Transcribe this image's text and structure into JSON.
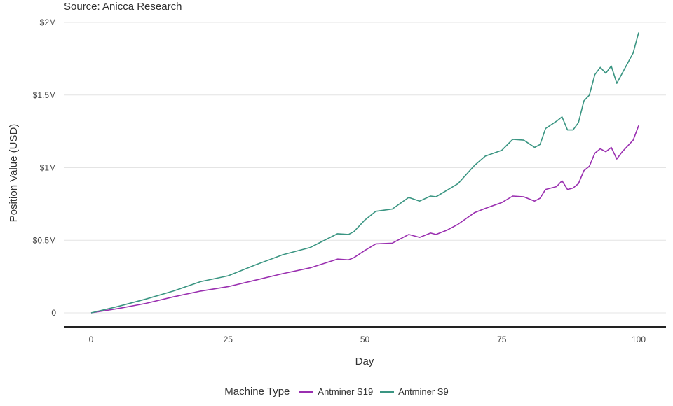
{
  "subtitle": "Source: Anicca Research",
  "colors": {
    "s19": "#9a2fb0",
    "s9": "#3a9582",
    "grid": "#e4e4e4",
    "axis": "#222222"
  },
  "chart_data": {
    "type": "line",
    "subtitle": "Source: Anicca Research",
    "xlabel": "Day",
    "ylabel": "Position Value (USD)",
    "xlim": [
      0,
      100
    ],
    "ylim": [
      0,
      2000000
    ],
    "x_ticks": [
      0,
      25,
      50,
      75,
      100
    ],
    "y_ticks": [
      0,
      500000,
      1000000,
      1500000,
      2000000
    ],
    "y_tick_labels": [
      "0",
      "$0.5M",
      "$1M",
      "$1.5M",
      "$2M"
    ],
    "x_tick_labels": [
      "0",
      "25",
      "50",
      "75",
      "100"
    ],
    "grid": "horizontal",
    "legend": {
      "title": "Machine Type",
      "position": "bottom",
      "entries": [
        "Antminer S19",
        "Antminer S9"
      ]
    },
    "series": [
      {
        "name": "Antminer S19",
        "color": "#9a2fb0",
        "x": [
          0,
          5,
          10,
          15,
          20,
          25,
          30,
          35,
          40,
          45,
          47,
          48,
          50,
          52,
          55,
          58,
          60,
          62,
          63,
          65,
          67,
          70,
          72,
          75,
          77,
          79,
          81,
          82,
          83,
          85,
          86,
          87,
          88,
          89,
          90,
          91,
          92,
          93,
          94,
          95,
          96,
          97,
          98,
          99,
          100
        ],
        "values": [
          0,
          30000,
          65000,
          110000,
          150000,
          180000,
          225000,
          270000,
          310000,
          370000,
          365000,
          380000,
          430000,
          475000,
          480000,
          540000,
          520000,
          550000,
          540000,
          570000,
          610000,
          690000,
          720000,
          760000,
          805000,
          800000,
          770000,
          790000,
          850000,
          870000,
          910000,
          850000,
          860000,
          890000,
          980000,
          1010000,
          1100000,
          1130000,
          1110000,
          1140000,
          1060000,
          1110000,
          1150000,
          1190000,
          1290000
        ]
      },
      {
        "name": "Antminer S9",
        "color": "#3a9582",
        "x": [
          0,
          5,
          10,
          15,
          20,
          25,
          30,
          35,
          40,
          45,
          47,
          48,
          50,
          52,
          55,
          58,
          60,
          62,
          63,
          65,
          67,
          70,
          72,
          75,
          77,
          79,
          81,
          82,
          83,
          85,
          86,
          87,
          88,
          89,
          90,
          91,
          92,
          93,
          94,
          95,
          96,
          97,
          98,
          99,
          100
        ],
        "values": [
          0,
          45000,
          95000,
          150000,
          215000,
          255000,
          330000,
          400000,
          450000,
          545000,
          540000,
          560000,
          640000,
          700000,
          715000,
          795000,
          770000,
          805000,
          800000,
          845000,
          890000,
          1015000,
          1080000,
          1120000,
          1195000,
          1190000,
          1140000,
          1160000,
          1270000,
          1320000,
          1350000,
          1260000,
          1260000,
          1310000,
          1460000,
          1500000,
          1640000,
          1690000,
          1650000,
          1700000,
          1580000,
          1650000,
          1720000,
          1790000,
          1930000
        ]
      }
    ]
  }
}
